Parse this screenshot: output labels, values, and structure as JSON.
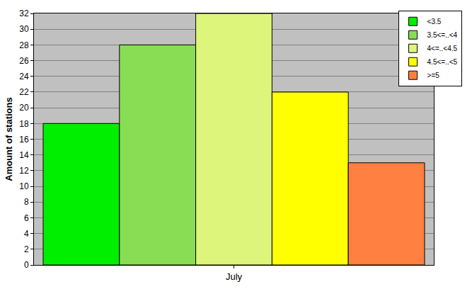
{
  "chart_data": {
    "type": "bar",
    "categories": [
      "July"
    ],
    "series": [
      {
        "name": "<3.5",
        "color": "#00ee00",
        "values": [
          18
        ]
      },
      {
        "name": "3.5<=..<4",
        "color": "#88dd55",
        "values": [
          28
        ]
      },
      {
        "name": "4<=..<4.5",
        "color": "#ddf57a",
        "values": [
          32
        ]
      },
      {
        "name": "4.5<=..<5",
        "color": "#ffff00",
        "values": [
          22
        ]
      },
      {
        "name": ">=5",
        "color": "#ff8040",
        "values": [
          13
        ]
      }
    ],
    "ylabel": "Amount of stations",
    "ylim": [
      0,
      32
    ],
    "yticks": [
      0,
      2,
      4,
      6,
      8,
      10,
      12,
      14,
      16,
      18,
      20,
      22,
      24,
      26,
      28,
      30,
      32
    ],
    "grid": true,
    "legend": "top-right"
  }
}
